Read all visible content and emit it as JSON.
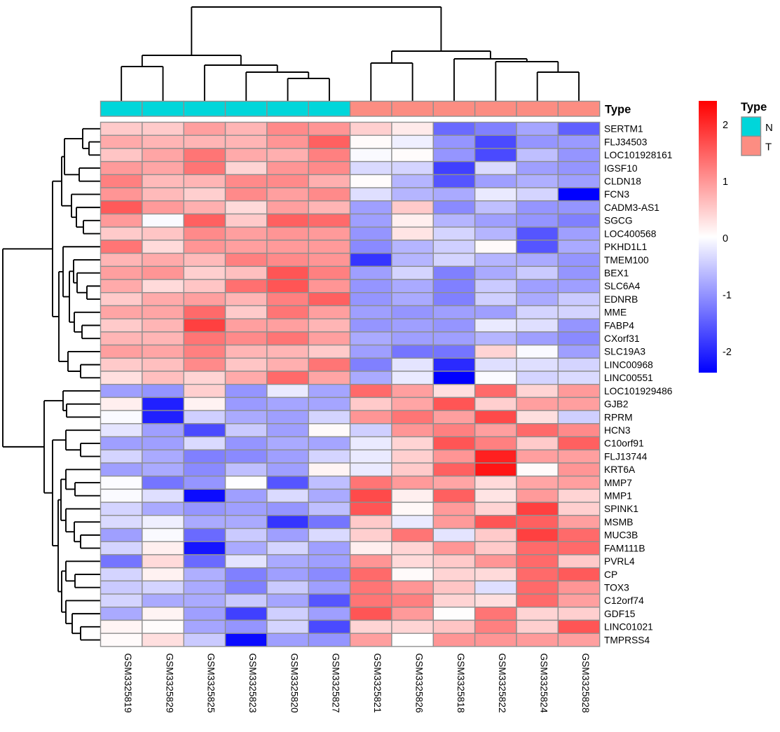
{
  "figure": {
    "background": "#FFFFFF",
    "annotation_title": "Type",
    "legend": {
      "title": "Type",
      "entries": [
        {
          "label": "N",
          "color": "#00D6DA"
        },
        {
          "label": "T",
          "color": "#FC8D82"
        }
      ]
    },
    "colorbar": {
      "ticks": [
        2,
        1,
        0,
        -1,
        -2
      ],
      "max": 2.4,
      "min": -2.4,
      "top_color": "#FF0000",
      "mid_color": "#FFFFFF",
      "bottom_color": "#0000FF"
    },
    "grid_color": "#8F8F8F",
    "line_color": "#000000",
    "text_color": "#000000"
  },
  "chart_data": {
    "type": "heatmap",
    "columns": [
      "GSM3325819",
      "GSM3325829",
      "GSM3325825",
      "GSM3325823",
      "GSM3325820",
      "GSM3325827",
      "GSM3325821",
      "GSM3325826",
      "GSM3325818",
      "GSM3325822",
      "GSM3325824",
      "GSM3325828"
    ],
    "rows": [
      "SERTM1",
      "FLJ34503",
      "LOC101928161",
      "IGSF10",
      "CLDN18",
      "FCN3",
      "CADM3-AS1",
      "SGCG",
      "LOC400568",
      "PKHD1L1",
      "TMEM100",
      "BEX1",
      "SLC6A4",
      "EDNRB",
      "MME",
      "FABP4",
      "CXorf31",
      "SLC19A3",
      "LINC00968",
      "LINC00551",
      "LOC101929486",
      "GJB2",
      "RPRM",
      "HCN3",
      "C10orf91",
      "FLJ13744",
      "KRT6A",
      "MMP7",
      "MMP1",
      "SPINK1",
      "MSMB",
      "MUC3B",
      "FAM111B",
      "PVRL4",
      "CP",
      "TOX3",
      "C12orf74",
      "GDF15",
      "LINC01021",
      "TMPRSS4"
    ],
    "values": [
      [
        0.5,
        0.5,
        0.9,
        0.7,
        1.1,
        1.0,
        0.45,
        0.2,
        -1.4,
        -1.2,
        -0.85,
        -1.5
      ],
      [
        0.8,
        0.7,
        0.7,
        0.7,
        1.0,
        1.5,
        0.05,
        -0.15,
        -1.0,
        -1.7,
        -1.0,
        -0.95
      ],
      [
        0.55,
        0.85,
        1.3,
        0.8,
        0.75,
        1.2,
        -0.05,
        0.03,
        -1.0,
        -1.7,
        -0.6,
        -1.0
      ],
      [
        0.95,
        0.85,
        1.3,
        0.4,
        1.0,
        1.1,
        -0.35,
        -0.4,
        -1.8,
        -0.35,
        -0.9,
        -1.0
      ],
      [
        1.2,
        0.65,
        0.7,
        1.1,
        1.1,
        0.75,
        0.03,
        -0.7,
        -1.6,
        -0.9,
        -0.75,
        -0.9
      ],
      [
        1.0,
        0.65,
        0.45,
        1.1,
        0.9,
        1.1,
        -0.3,
        -0.7,
        -0.8,
        -0.2,
        -0.4,
        -2.4
      ],
      [
        1.55,
        0.95,
        0.75,
        0.35,
        0.9,
        0.7,
        -0.9,
        0.5,
        -1.1,
        -0.6,
        -1.0,
        -1.0
      ],
      [
        0.95,
        -0.05,
        1.5,
        0.5,
        1.5,
        1.4,
        -0.9,
        0.15,
        -0.7,
        -0.9,
        -1.0,
        -1.2
      ],
      [
        0.5,
        0.55,
        1.1,
        0.9,
        1.0,
        0.95,
        -1.0,
        0.25,
        -0.4,
        -0.7,
        -1.6,
        -0.9
      ],
      [
        1.3,
        0.35,
        1.0,
        0.9,
        0.95,
        0.95,
        -1.1,
        -0.7,
        -0.45,
        0.05,
        -1.6,
        -0.8
      ],
      [
        0.7,
        0.8,
        0.65,
        1.2,
        1.1,
        1.0,
        -1.9,
        -0.7,
        -0.4,
        -0.7,
        -0.8,
        -1.0
      ],
      [
        0.9,
        1.0,
        0.45,
        0.6,
        1.6,
        1.2,
        -0.9,
        -0.4,
        -1.2,
        -0.8,
        -0.5,
        -1.0
      ],
      [
        0.8,
        0.35,
        0.55,
        1.35,
        1.6,
        1.0,
        -1.0,
        -0.8,
        -1.2,
        -0.5,
        -0.9,
        -0.9
      ],
      [
        0.5,
        0.8,
        0.9,
        0.7,
        1.2,
        1.5,
        -1.0,
        -0.8,
        -1.2,
        -0.45,
        -0.8,
        -0.5
      ],
      [
        0.85,
        0.85,
        1.4,
        0.5,
        1.3,
        0.9,
        -0.9,
        -1.0,
        -0.9,
        -0.9,
        -0.4,
        -0.4
      ],
      [
        0.5,
        0.7,
        1.8,
        0.9,
        0.9,
        0.7,
        -1.0,
        -0.9,
        -1.0,
        -0.2,
        -0.3,
        -1.0
      ],
      [
        0.7,
        0.7,
        1.3,
        1.1,
        1.3,
        0.9,
        -0.8,
        -0.9,
        -0.9,
        -0.7,
        -0.9,
        -1.1
      ],
      [
        0.9,
        0.85,
        1.2,
        0.7,
        0.7,
        0.5,
        -0.9,
        -1.3,
        -1.3,
        0.4,
        -0.05,
        -0.9
      ],
      [
        0.5,
        0.6,
        1.1,
        0.55,
        0.75,
        1.3,
        -1.2,
        -0.25,
        -2.0,
        -0.3,
        -0.3,
        -0.4
      ],
      [
        0.3,
        0.6,
        0.4,
        0.8,
        1.4,
        0.85,
        -0.8,
        -0.2,
        -2.4,
        -0.05,
        -0.4,
        -0.35
      ],
      [
        -0.9,
        -1.0,
        0.45,
        -1.0,
        -0.2,
        -0.85,
        1.4,
        0.9,
        0.3,
        1.4,
        0.4,
        0.95
      ],
      [
        0.15,
        -2.1,
        0.12,
        -0.95,
        -0.85,
        -0.85,
        0.5,
        0.85,
        1.6,
        0.45,
        0.9,
        0.9
      ],
      [
        -0.05,
        -2.1,
        -0.45,
        -0.8,
        -0.9,
        -0.4,
        1.0,
        1.3,
        0.9,
        1.7,
        0.3,
        -0.45
      ],
      [
        -0.25,
        -0.9,
        -1.7,
        -0.5,
        -0.9,
        0.05,
        -0.45,
        1.0,
        1.2,
        0.9,
        1.4,
        1.1
      ],
      [
        -0.9,
        -0.9,
        -0.35,
        -1.0,
        -0.8,
        -0.85,
        -0.2,
        0.4,
        1.6,
        1.2,
        0.5,
        1.5
      ],
      [
        -0.4,
        -0.8,
        -1.2,
        -1.1,
        -0.9,
        -0.4,
        -0.2,
        0.45,
        1.0,
        2.1,
        0.9,
        0.9
      ],
      [
        -0.9,
        -0.8,
        -1.1,
        -0.6,
        -0.9,
        0.1,
        -0.2,
        0.5,
        1.5,
        2.2,
        0.05,
        1.0
      ],
      [
        -0.03,
        -1.3,
        -1.0,
        -0.02,
        -1.6,
        -0.6,
        1.3,
        0.95,
        0.85,
        0.35,
        0.85,
        0.9
      ],
      [
        -0.05,
        -0.3,
        -2.3,
        -0.9,
        -0.35,
        -0.8,
        1.7,
        0.15,
        1.5,
        0.25,
        0.95,
        0.4
      ],
      [
        -0.4,
        -0.8,
        -1.0,
        -0.9,
        -1.0,
        -0.6,
        1.6,
        0.07,
        0.95,
        0.4,
        1.8,
        0.45
      ],
      [
        -0.35,
        -0.15,
        -0.8,
        -0.8,
        -1.9,
        -1.3,
        0.5,
        -0.2,
        0.95,
        1.6,
        1.5,
        0.9
      ],
      [
        -0.9,
        -0.05,
        -1.4,
        -0.5,
        -0.9,
        -0.35,
        0.45,
        1.3,
        -0.25,
        0.5,
        1.8,
        1.4
      ],
      [
        -0.4,
        0.15,
        -2.2,
        -0.8,
        -0.4,
        -0.9,
        0.15,
        0.4,
        1.0,
        0.5,
        1.4,
        1.4
      ],
      [
        -1.3,
        0.35,
        -1.4,
        -0.25,
        -0.8,
        -0.9,
        1.0,
        0.35,
        0.5,
        1.0,
        1.4,
        0.5
      ],
      [
        -0.4,
        0.12,
        -0.75,
        -1.2,
        -0.9,
        -1.1,
        1.4,
        0.05,
        0.4,
        0.35,
        1.4,
        1.55
      ],
      [
        -0.5,
        -0.4,
        -0.8,
        -1.2,
        -0.5,
        -0.9,
        1.3,
        1.0,
        0.55,
        -0.3,
        1.4,
        1.0
      ],
      [
        -0.4,
        -0.8,
        -0.8,
        -0.5,
        -0.85,
        -1.6,
        1.3,
        1.2,
        0.4,
        0.3,
        1.4,
        0.9
      ],
      [
        -0.8,
        0.1,
        -0.9,
        -1.8,
        -0.45,
        -0.9,
        1.6,
        0.95,
        0.02,
        1.3,
        0.4,
        0.45
      ],
      [
        0.1,
        0.03,
        -0.85,
        -1.0,
        -0.4,
        -1.7,
        0.4,
        0.4,
        0.55,
        1.2,
        0.45,
        1.6
      ],
      [
        0.05,
        0.3,
        -0.5,
        -2.3,
        -0.9,
        -1.0,
        0.9,
        0.0,
        1.0,
        1.0,
        0.95,
        0.9
      ]
    ],
    "column_annotation": {
      "name": "Type",
      "values": [
        "N",
        "N",
        "N",
        "N",
        "N",
        "N",
        "T",
        "T",
        "T",
        "T",
        "T",
        "T"
      ],
      "colors": {
        "N": "#00D6DA",
        "T": "#FC8D82"
      }
    },
    "scale": {
      "min": -2.4,
      "max": 2.4
    },
    "col_dendrogram": [
      [
        [
          0,
          1,
          95
        ],
        [
          2,
          [
            3,
            [
              4,
              5,
              112
            ],
            103
          ],
          93
        ],
        79
      ],
      [
        [
          6,
          7,
          90
        ],
        [
          8,
          [
            9,
            [
              10,
              11,
              103
            ],
            88
          ],
          84
        ],
        73
      ],
      10
    ],
    "row_dendrogram": [
      [
        [
          [
            [
              0,
              [
                1,
                2,
                127
              ],
              118
            ],
            [
              3,
              4,
              113
            ],
            92
          ],
          [
            5,
            [
              6,
              [
                7,
                8,
                119
              ],
              109
            ],
            102
          ],
          88
        ],
        [
          [
            9,
            [
              [
                10,
                [
                  11,
                  [
                    12,
                    13,
                    124
                  ],
                  110
                ],
                105
              ],
              [
                14,
                [
                  15,
                  16,
                  117
                ],
                106
              ],
              99
            ],
            90
          ],
          [
            17,
            [
              18,
              19,
              115
            ],
            97
          ],
          84
        ],
        75
      ],
      [
        [
          20,
          [
            21,
            22,
            95
          ],
          90
        ],
        [
          [
            23,
            [
              24,
              25,
              115
            ],
            94
          ],
          [
            [
              [
                26,
                [
                  27,
                  28,
                  107
                ],
                94
              ],
              [
                29,
                [
                  30,
                  [
                    31,
                    32,
                    115
                  ],
                  106
                ],
                94
              ],
              87
            ],
            [
              [
                33,
                [
                  34,
                  35,
                  107
                ],
                94
              ],
              [
                36,
                [
                  37,
                  [
                    38,
                    39,
                    115
                  ],
                  103
                ],
                94
              ],
              88
            ],
            83
          ],
          75
        ],
        63
      ],
      4
    ]
  }
}
